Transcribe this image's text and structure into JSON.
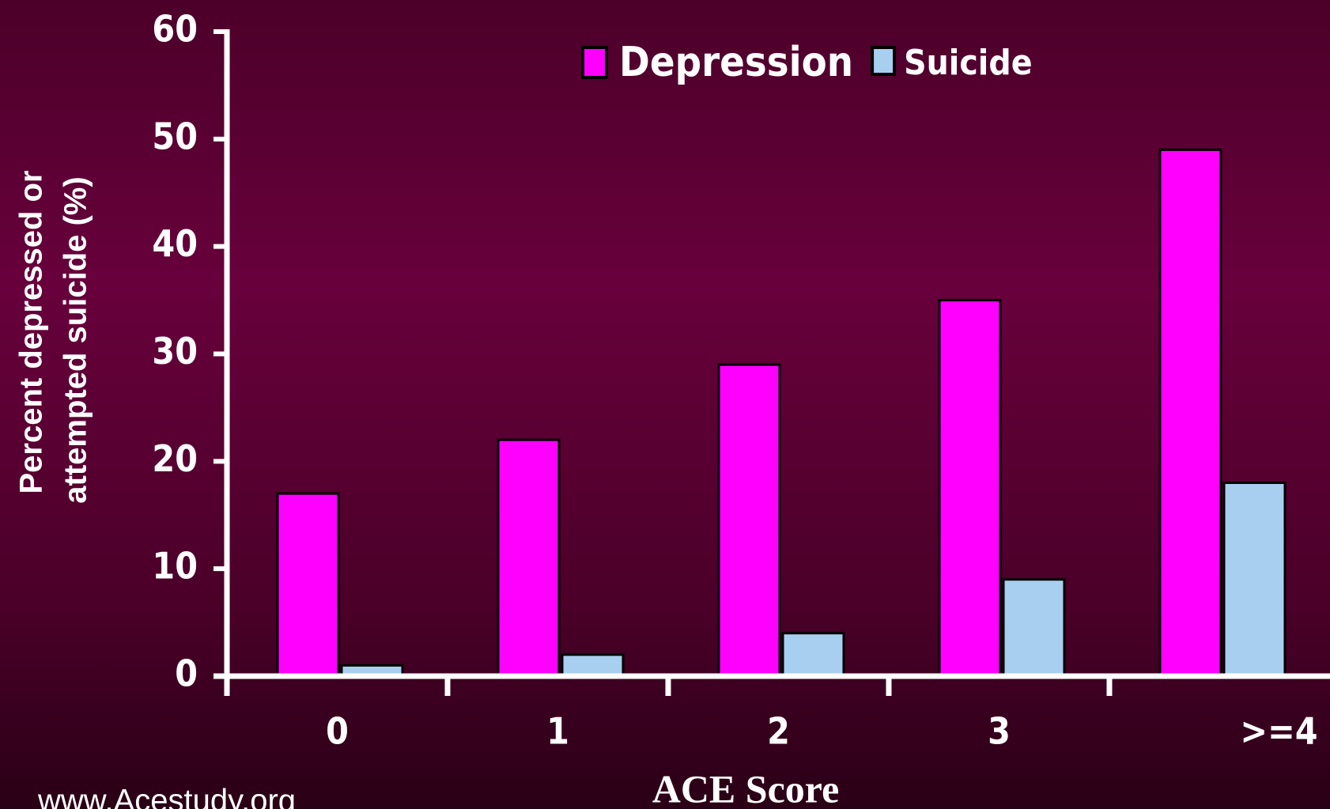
{
  "chart_data": {
    "type": "bar",
    "categories": [
      "0",
      "1",
      "2",
      "3",
      ">=4"
    ],
    "series": [
      {
        "name": "Depression",
        "color": "#ff00ff",
        "values": [
          17,
          22,
          29,
          35,
          49
        ]
      },
      {
        "name": "Suicide",
        "color": "#a8cff0",
        "values": [
          1,
          2,
          4,
          9,
          18
        ]
      }
    ],
    "x_label": "ACE Score",
    "y_label": [
      "Percent depressed or",
      "attempted suicide (%)"
    ],
    "ylim": [
      0,
      60
    ],
    "yticks": [
      0,
      10,
      20,
      30,
      40,
      50,
      60
    ],
    "legend": "top",
    "source": "www.Acestudy.org"
  }
}
